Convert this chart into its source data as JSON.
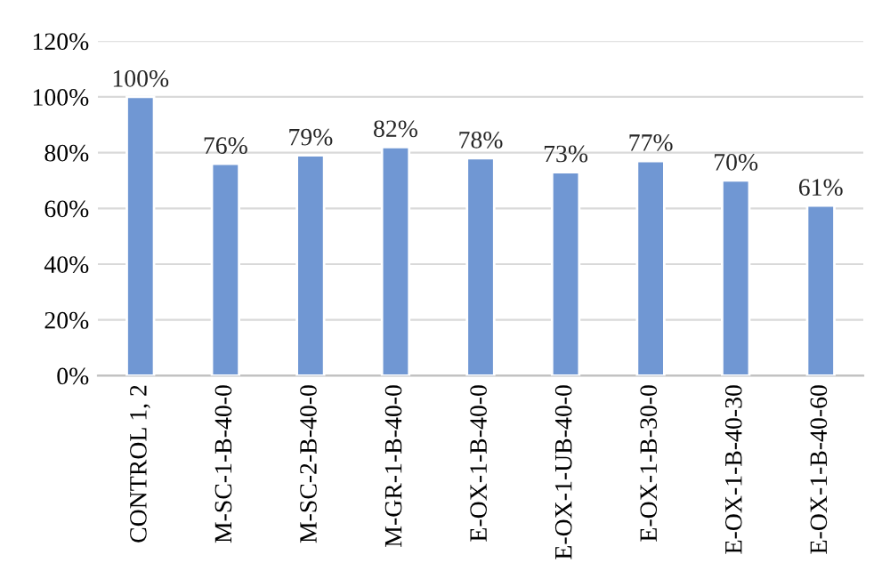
{
  "chart_data": {
    "type": "bar",
    "categories": [
      "CONTROL 1, 2",
      "M-SC-1-B-40-0",
      "M-SC-2-B-40-0",
      "M-GR-1-B-40-0",
      "E-OX-1-B-40-0",
      "E-OX-1-UB-40-0",
      "E-OX-1-B-30-0",
      "E-OX-1-B-40-30",
      "E-OX-1-B-40-60"
    ],
    "values": [
      100,
      76,
      79,
      82,
      78,
      73,
      77,
      70,
      61
    ],
    "value_labels": [
      "100%",
      "76%",
      "79%",
      "82%",
      "78%",
      "73%",
      "77%",
      "70%",
      "61%"
    ],
    "color": "#7097d3",
    "ylim": [
      0,
      120
    ],
    "yticks": [
      {
        "value": 0,
        "label": "0%"
      },
      {
        "value": 20,
        "label": "20%"
      },
      {
        "value": 40,
        "label": "40%"
      },
      {
        "value": 60,
        "label": "60%"
      },
      {
        "value": 80,
        "label": "80%"
      },
      {
        "value": 100,
        "label": "100%"
      },
      {
        "value": 120,
        "label": "120%"
      }
    ],
    "grid": "y"
  }
}
